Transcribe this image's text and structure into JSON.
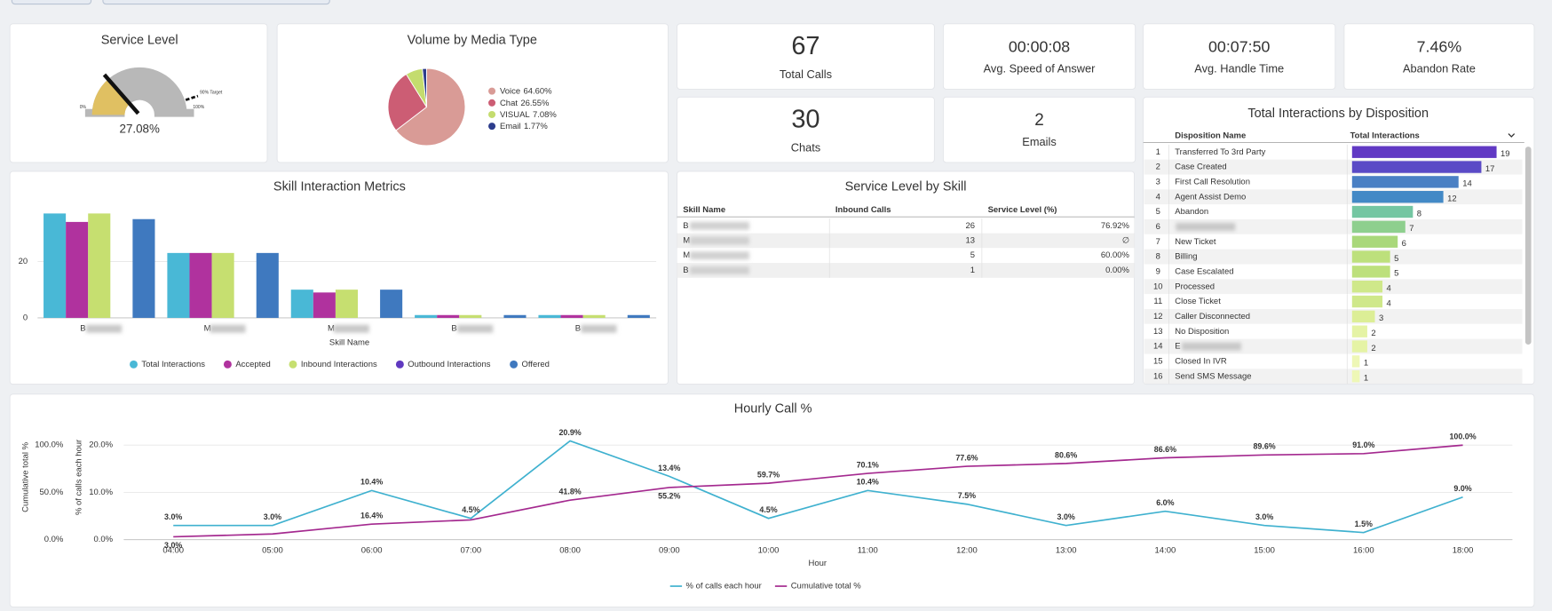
{
  "kpis": [
    {
      "value": "67",
      "label": "Total Calls"
    },
    {
      "value": "00:00:08",
      "label": "Avg. Speed of Answer"
    },
    {
      "value": "00:07:50",
      "label": "Avg. Handle Time"
    },
    {
      "value": "7.46%",
      "label": "Abandon Rate"
    },
    {
      "value": "30",
      "label": "Chats"
    },
    {
      "value": "2",
      "label": "Emails"
    }
  ],
  "service_level_by_skill": {
    "title": "Service Level by Skill",
    "columns": [
      "Skill Name",
      "Inbound Calls",
      "Service Level (%)"
    ],
    "rows": [
      [
        "B",
        26,
        "76.92%"
      ],
      [
        "M",
        13,
        "∅"
      ],
      [
        "M",
        5,
        "60.00%"
      ],
      [
        "B",
        1,
        "0.00%"
      ]
    ]
  },
  "chart_data": [
    {
      "type": "gauge",
      "title": "Service Level",
      "value": 27.08,
      "value_label": "27.08%",
      "range": [
        0,
        100
      ],
      "range_labels": [
        "0%",
        "100%"
      ],
      "target": 90,
      "target_label": "90% Target",
      "color": "#e0c062",
      "track_color": "#b8b8b8"
    },
    {
      "type": "pie",
      "title": "Volume by Media Type",
      "categories": [
        "Voice",
        "Chat",
        "VISUAL",
        "Email"
      ],
      "values": [
        64.6,
        26.55,
        7.08,
        1.77
      ],
      "value_labels": [
        "64.60%",
        "26.55%",
        "7.08%",
        "1.77%"
      ],
      "colors": [
        "#d99b96",
        "#cc5d74",
        "#c4dc6e",
        "#2d3d8c"
      ]
    },
    {
      "type": "bar",
      "title": "Skill Interaction Metrics",
      "x_label": "Skill Name",
      "categories": [
        "B",
        "M",
        "M",
        "B",
        "B"
      ],
      "series": [
        {
          "name": "Total Interactions",
          "color": "#49b8d6",
          "values": [
            37,
            23,
            10,
            1,
            1
          ]
        },
        {
          "name": "Accepted",
          "color": "#b0329e",
          "values": [
            34,
            23,
            9,
            1,
            1
          ]
        },
        {
          "name": "Inbound Interactions",
          "color": "#c6df70",
          "values": [
            37,
            23,
            10,
            1,
            1
          ]
        },
        {
          "name": "Outbound Interactions",
          "color": "#6039c0",
          "values": [
            0,
            0,
            0,
            0,
            0
          ]
        },
        {
          "name": "Offered",
          "color": "#3f79bf",
          "values": [
            35,
            23,
            10,
            1,
            1
          ]
        }
      ],
      "ylim": [
        0,
        40
      ],
      "yticks": [
        0,
        20
      ],
      "grid": true
    },
    {
      "type": "line",
      "title": "Hourly Call %",
      "x_label": "Hour",
      "y_label": "% of calls each hour",
      "y2_label": "Cumulative total %",
      "categories": [
        "04:00",
        "05:00",
        "06:00",
        "07:00",
        "08:00",
        "09:00",
        "10:00",
        "11:00",
        "12:00",
        "13:00",
        "14:00",
        "15:00",
        "16:00",
        "18:00"
      ],
      "series": [
        {
          "name": "% of calls each hour",
          "color": "#3fb1cf",
          "values": [
            3.0,
            3.0,
            10.4,
            4.5,
            20.9,
            13.4,
            4.5,
            10.4,
            7.5,
            3.0,
            6.0,
            3.0,
            1.5,
            9.0
          ],
          "value_labels": [
            "3.0%",
            "3.0%",
            "10.4%",
            "4.5%",
            "20.9%",
            "13.4%",
            "4.5%",
            "10.4%",
            "7.5%",
            "3.0%",
            "6.0%",
            "3.0%",
            "1.5%",
            "9.0%"
          ]
        },
        {
          "name": "Cumulative total %",
          "color": "#a4298f",
          "axis": "y2",
          "values": [
            3.0,
            6.0,
            16.4,
            20.9,
            41.8,
            55.2,
            59.7,
            70.1,
            77.6,
            80.6,
            86.6,
            89.6,
            91.0,
            100.0
          ],
          "value_labels": [
            "3.0%",
            null,
            "16.4%",
            null,
            "41.8%",
            "55.2%",
            "59.7%",
            "70.1%",
            "77.6%",
            "80.6%",
            "86.6%",
            "89.6%",
            "91.0%",
            "100.0%"
          ]
        }
      ],
      "ylim": [
        0,
        22
      ],
      "yticks": [
        {
          "value": 0,
          "label": "0.0%"
        },
        {
          "value": 10,
          "label": "10.0%"
        },
        {
          "value": 20,
          "label": "20.0%"
        }
      ],
      "y2lim": [
        0,
        110
      ],
      "y2ticks": [
        {
          "value": 0,
          "label": "0.0%"
        },
        {
          "value": 50,
          "label": "50.0%"
        },
        {
          "value": 100,
          "label": "100.0%"
        }
      ],
      "grid": true
    },
    {
      "type": "table-bar",
      "title": "Total Interactions by Disposition",
      "columns": [
        "Disposition Name",
        "Total Interactions"
      ],
      "index": [
        1,
        2,
        3,
        4,
        5,
        6,
        7,
        8,
        9,
        10,
        11,
        12,
        13,
        14,
        15,
        16
      ],
      "categories": [
        "Transferred To 3rd Party",
        "Case Created",
        "First Call Resolution",
        "Agent Assist Demo",
        "Abandon",
        null,
        "New Ticket",
        "Billing",
        "Case Escalated",
        "Processed",
        "Close Ticket",
        "Caller Disconnected",
        "No Disposition",
        "E",
        "Closed In IVR",
        "Send SMS Message"
      ],
      "values": [
        19,
        17,
        14,
        12,
        8,
        7,
        6,
        5,
        5,
        4,
        4,
        3,
        2,
        2,
        1,
        1
      ],
      "colors": [
        "#6139c4",
        "#5a4ac6",
        "#4a80c4",
        "#4389c6",
        "#74c6a2",
        "#8ecf8e",
        "#a9d87a",
        "#bde07c",
        "#bde07c",
        "#cfe88a",
        "#cfe88a",
        "#dcee96",
        "#e5f3a5",
        "#e5f3a5",
        "#eef7b6",
        "#eef7b6"
      ]
    }
  ]
}
